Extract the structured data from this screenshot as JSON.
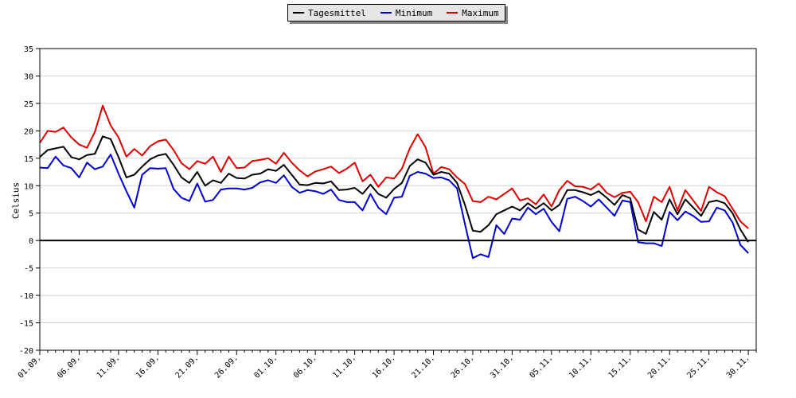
{
  "chart_data": {
    "type": "line",
    "title": "",
    "xlabel": "",
    "ylabel": "Celsius",
    "ylim": [
      -20,
      35
    ],
    "yticks": [
      35,
      30,
      25,
      20,
      15,
      10,
      5,
      0,
      -5,
      -10,
      -15,
      -20
    ],
    "grid": true,
    "legend_position": "top-center",
    "x_tick_labels": [
      "01.09.",
      "06.09.",
      "11.09.",
      "16.09.",
      "21.09.",
      "26.09.",
      "01.10.",
      "06.10.",
      "11.10.",
      "16.10.",
      "21.10.",
      "26.10.",
      "31.10.",
      "05.11.",
      "10.11.",
      "15.11.",
      "20.11.",
      "25.11.",
      "30.11."
    ],
    "x_tick_every_days": 5,
    "x_start": "01.09.",
    "x_end": "01.12.",
    "series": [
      {
        "name": "Tagesmittel",
        "color": "#000000",
        "values": [
          15.2,
          16.5,
          16.8,
          17.1,
          15.2,
          14.8,
          15.6,
          15.8,
          19.0,
          18.5,
          15.2,
          11.5,
          12.0,
          13.5,
          14.8,
          15.5,
          15.8,
          13.8,
          11.5,
          10.5,
          12.5,
          10.0,
          11.0,
          10.5,
          12.2,
          11.4,
          11.3,
          12.0,
          12.2,
          13.0,
          12.7,
          13.8,
          12.0,
          10.2,
          10.1,
          10.5,
          10.4,
          10.8,
          9.2,
          9.3,
          9.6,
          8.5,
          10.2,
          8.5,
          7.8,
          9.4,
          10.5,
          13.6,
          14.8,
          14.2,
          12.0,
          12.5,
          12.2,
          10.5,
          6.5,
          1.8,
          1.6,
          2.8,
          4.8,
          5.5,
          6.2,
          5.5,
          6.8,
          5.8,
          6.8,
          5.5,
          6.5,
          9.2,
          9.2,
          8.8,
          8.3,
          9.0,
          7.8,
          6.5,
          8.3,
          7.7,
          2.0,
          1.2,
          5.2,
          3.8,
          7.5,
          4.8,
          7.5,
          6.0,
          4.5,
          7.0,
          7.3,
          6.8,
          5.0,
          2.0,
          -0.3
        ]
      },
      {
        "name": "Minimum",
        "color": "#0000cc",
        "values": [
          13.3,
          13.2,
          15.3,
          13.7,
          13.2,
          11.5,
          14.2,
          13.0,
          13.5,
          15.7,
          12.2,
          9.0,
          6.0,
          12.0,
          13.2,
          13.1,
          13.2,
          9.4,
          7.8,
          7.2,
          10.4,
          7.1,
          7.4,
          9.3,
          9.5,
          9.5,
          9.3,
          9.6,
          10.6,
          11.0,
          10.5,
          11.9,
          9.8,
          8.7,
          9.2,
          9.0,
          8.5,
          9.3,
          7.4,
          7.0,
          7.0,
          5.5,
          8.5,
          6.0,
          4.8,
          7.8,
          8.0,
          11.8,
          12.5,
          12.2,
          11.4,
          11.5,
          11.0,
          9.5,
          3.0,
          -3.2,
          -2.5,
          -3.0,
          2.8,
          1.2,
          4.0,
          3.8,
          6.0,
          4.8,
          5.8,
          3.4,
          1.7,
          7.6,
          8.0,
          7.2,
          6.2,
          7.5,
          6.0,
          4.5,
          7.3,
          7.0,
          -0.3,
          -0.5,
          -0.5,
          -1.0,
          5.2,
          3.7,
          5.3,
          4.5,
          3.4,
          3.5,
          6.0,
          5.5,
          3.3,
          -0.8,
          -2.3
        ]
      },
      {
        "name": "Maximum",
        "color": "#dd0000",
        "values": [
          17.8,
          20.0,
          19.8,
          20.6,
          18.8,
          17.5,
          16.9,
          19.8,
          24.6,
          21.0,
          18.8,
          15.3,
          16.7,
          15.5,
          17.2,
          18.1,
          18.4,
          16.5,
          14.1,
          13.0,
          14.5,
          14.0,
          15.3,
          12.5,
          15.3,
          13.2,
          13.3,
          14.5,
          14.7,
          15.0,
          14.0,
          16.0,
          14.2,
          12.8,
          11.7,
          12.6,
          13.0,
          13.5,
          12.3,
          13.1,
          14.2,
          10.8,
          12.0,
          9.8,
          11.5,
          11.3,
          13.1,
          16.8,
          19.4,
          17.0,
          12.2,
          13.4,
          13.0,
          11.5,
          10.3,
          7.2,
          7.0,
          8.0,
          7.5,
          8.5,
          9.5,
          7.3,
          7.7,
          6.6,
          8.4,
          6.2,
          9.2,
          10.9,
          9.9,
          9.8,
          9.3,
          10.4,
          8.7,
          7.9,
          8.7,
          8.9,
          7.0,
          3.5,
          8.0,
          7.0,
          9.8,
          5.5,
          9.2,
          7.3,
          5.4,
          9.8,
          8.8,
          8.1,
          5.8,
          3.5,
          2.2
        ]
      }
    ]
  }
}
